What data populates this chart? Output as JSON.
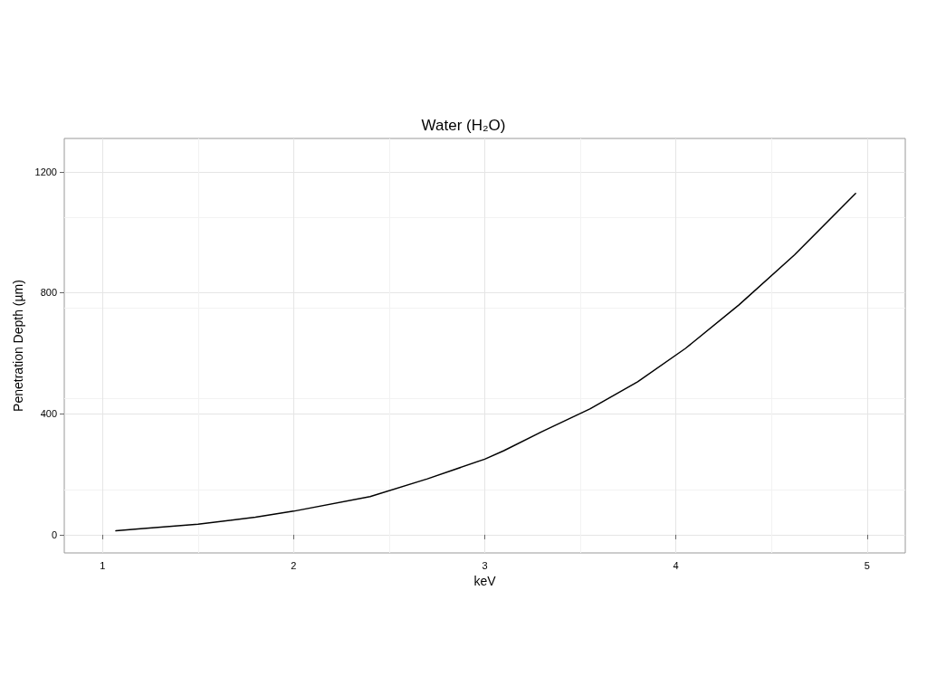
{
  "chart_data": {
    "type": "line",
    "title": "Water (H₂O)",
    "xlabel": "keV",
    "ylabel": "Penetration Depth (µm)",
    "x": [
      1.07,
      1.2,
      1.5,
      1.8,
      2.0,
      2.4,
      2.7,
      3.0,
      3.1,
      3.3,
      3.55,
      3.8,
      4.05,
      4.33,
      4.62,
      4.94
    ],
    "series": [
      {
        "color": "#000000",
        "values": [
          13,
          20,
          35,
          58,
          78,
          126,
          185,
          250,
          278,
          341,
          416,
          506,
          616,
          760,
          925,
          1128
        ]
      }
    ],
    "xlim": [
      0.8,
      5.2
    ],
    "xticks": [
      1,
      2,
      3,
      4,
      5
    ],
    "ylim": [
      -60,
      1310
    ],
    "yticks": [
      0,
      400,
      800,
      1200
    ],
    "grid": true,
    "marker": "none",
    "line_style": "solid"
  }
}
